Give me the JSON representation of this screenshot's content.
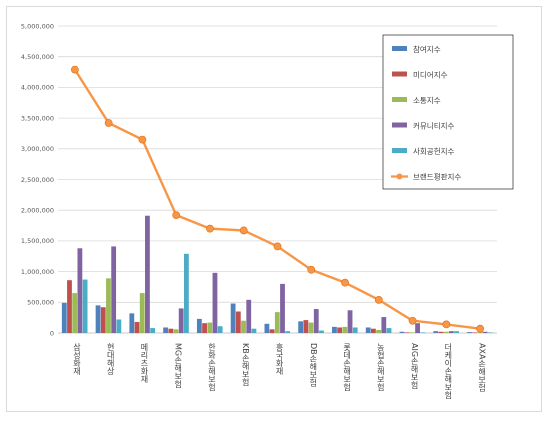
{
  "chart_data": {
    "type": "bar",
    "title": "",
    "xlabel": "",
    "ylabel": "",
    "ylim": [
      0,
      5000000
    ],
    "yticks": [
      0,
      500000,
      1000000,
      1500000,
      2000000,
      2500000,
      3000000,
      3500000,
      4000000,
      4500000,
      5000000
    ],
    "ytick_labels": [
      "0",
      "500,000",
      "1,000,000",
      "1,500,000",
      "2,000,000",
      "2,500,000",
      "3,000,000",
      "3,500,000",
      "4,000,000",
      "4,500,000",
      "5,000,000"
    ],
    "grid": true,
    "legend_position": "top-right",
    "categories": [
      "삼성화재",
      "현대해상",
      "메리츠화재",
      "MG손해보험",
      "한화손해보험",
      "KB손해보험",
      "흥국화재",
      "DB손해보험",
      "롯데손해보험",
      "농협손해보험",
      "AIG손해보험",
      "더케이손해보험",
      "AXA손해보험"
    ],
    "series": [
      {
        "name": "참여지수",
        "type": "bar",
        "color": "#4f81bd",
        "values": [
          490000,
          450000,
          320000,
          90000,
          230000,
          480000,
          150000,
          190000,
          100000,
          90000,
          20000,
          30000,
          15000
        ]
      },
      {
        "name": "미디어지수",
        "type": "bar",
        "color": "#c0504d",
        "values": [
          860000,
          420000,
          180000,
          70000,
          160000,
          350000,
          60000,
          210000,
          90000,
          70000,
          10000,
          20000,
          10000
        ]
      },
      {
        "name": "소통지수",
        "type": "bar",
        "color": "#9bbb59",
        "values": [
          650000,
          890000,
          650000,
          60000,
          170000,
          200000,
          340000,
          170000,
          100000,
          50000,
          10000,
          20000,
          10000
        ]
      },
      {
        "name": "커뮤니티지수",
        "type": "bar",
        "color": "#8064a2",
        "values": [
          1380000,
          1410000,
          1910000,
          400000,
          980000,
          540000,
          800000,
          390000,
          370000,
          260000,
          160000,
          30000,
          20000
        ]
      },
      {
        "name": "사회공헌지수",
        "type": "bar",
        "color": "#4bacc6",
        "values": [
          870000,
          220000,
          80000,
          1290000,
          110000,
          70000,
          30000,
          40000,
          90000,
          80000,
          10000,
          30000,
          10000
        ]
      },
      {
        "name": "브랜드평판지수",
        "type": "line",
        "color": "#f79646",
        "values": [
          4290000,
          3420000,
          3150000,
          1920000,
          1700000,
          1670000,
          1410000,
          1030000,
          820000,
          540000,
          200000,
          140000,
          70000
        ]
      }
    ]
  }
}
